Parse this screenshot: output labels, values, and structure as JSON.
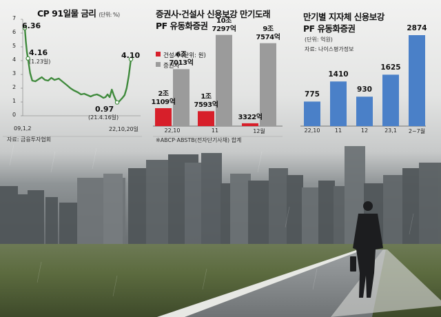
{
  "colors": {
    "line": "#3f8a3c",
    "bar_red": "#d71f2a",
    "bar_gray": "#9b9b9b",
    "bar_blue": "#4a80c8"
  },
  "chart_data": [
    {
      "type": "line",
      "title": "CP 91일물 금리",
      "unit": "(단위: %)",
      "source": "자료: 금융투자협회",
      "ylim": [
        0,
        7
      ],
      "yticks": [
        0,
        1,
        2,
        3,
        4,
        5,
        6,
        7
      ],
      "xlabels": [
        "09,1,2",
        "22,10,20일"
      ],
      "series": [
        {
          "points": [
            [
              0,
              6.36
            ],
            [
              0.01,
              5.4
            ],
            [
              0.02,
              4.6
            ],
            [
              0.03,
              4.16
            ],
            [
              0.05,
              3.1
            ],
            [
              0.07,
              2.55
            ],
            [
              0.1,
              2.5
            ],
            [
              0.13,
              2.65
            ],
            [
              0.16,
              2.8
            ],
            [
              0.19,
              2.6
            ],
            [
              0.22,
              2.55
            ],
            [
              0.25,
              2.75
            ],
            [
              0.28,
              2.6
            ],
            [
              0.32,
              2.7
            ],
            [
              0.36,
              2.45
            ],
            [
              0.4,
              2.2
            ],
            [
              0.43,
              2.0
            ],
            [
              0.46,
              1.85
            ],
            [
              0.5,
              1.7
            ],
            [
              0.53,
              1.55
            ],
            [
              0.56,
              1.6
            ],
            [
              0.59,
              1.5
            ],
            [
              0.62,
              1.4
            ],
            [
              0.65,
              1.5
            ],
            [
              0.68,
              1.55
            ],
            [
              0.71,
              1.45
            ],
            [
              0.74,
              1.3
            ],
            [
              0.76,
              1.35
            ],
            [
              0.78,
              1.55
            ],
            [
              0.8,
              1.35
            ],
            [
              0.82,
              1.9
            ],
            [
              0.84,
              1.45
            ],
            [
              0.86,
              1.1
            ],
            [
              0.87,
              0.97
            ],
            [
              0.89,
              1.05
            ],
            [
              0.92,
              1.3
            ],
            [
              0.94,
              1.5
            ],
            [
              0.96,
              2.0
            ],
            [
              0.98,
              2.9
            ],
            [
              1.0,
              4.1
            ]
          ]
        }
      ],
      "annotations": [
        {
          "label": "6.36"
        },
        {
          "label": "4.16",
          "sub": "(1.23일)"
        },
        {
          "label": "0.97",
          "sub": "(21.4.16일)"
        },
        {
          "label": "4.10"
        }
      ]
    },
    {
      "type": "bar",
      "title_line1": "증권사·건설사 신용보강 만기도래",
      "title_line2": "PF 유동화증권",
      "unit": "(단위: 원)",
      "source": "※ABCP·ABSTB(전자단기사채) 합계",
      "categories": [
        "22,10",
        "11",
        "12월"
      ],
      "series": [
        {
          "name": "건설사",
          "values": [
            21109,
            17593,
            3322
          ],
          "labels": [
            "2조\n1109억",
            "1조\n7593억",
            "3322억"
          ]
        },
        {
          "name": "증권사",
          "values": [
            67013,
            107297,
            97574
          ],
          "labels": [
            "6조\n7013억",
            "10조\n7297억",
            "9조\n7574억"
          ]
        }
      ]
    },
    {
      "type": "bar",
      "title_line1": "만기별 지자체 신용보강",
      "title_line2": "PF 유동화증권",
      "unit": "(단위: 억원)",
      "source": "자료: 나이스평가정보",
      "categories": [
        "22,10",
        "11",
        "12",
        "23,1",
        "2~7월"
      ],
      "values": [
        775,
        1410,
        930,
        1625,
        2874
      ]
    }
  ]
}
